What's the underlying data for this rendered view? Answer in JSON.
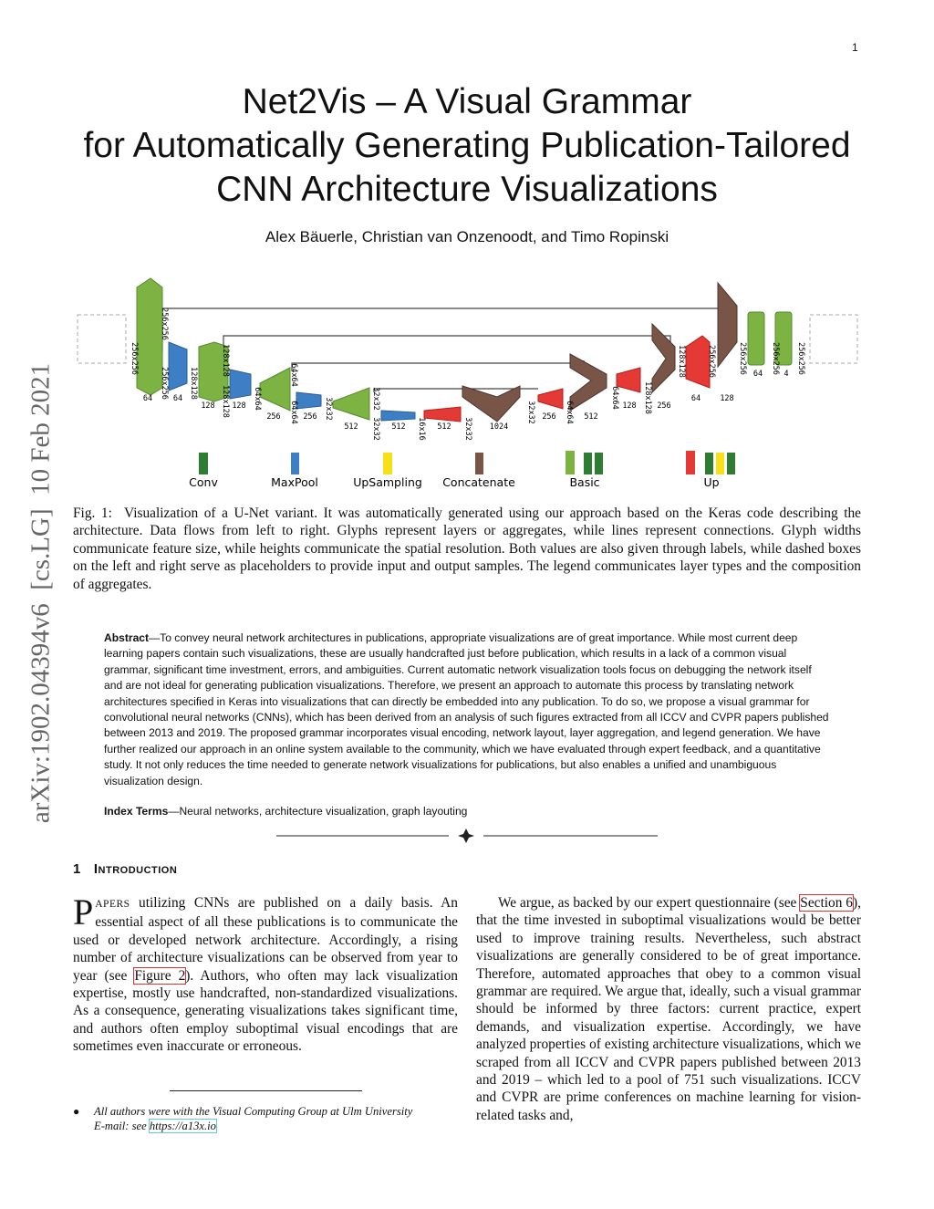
{
  "page_number": "1",
  "title": [
    "Net2Vis – A Visual Grammar",
    "for Automatically Generating Publication-Tailored",
    "CNN Architecture Visualizations"
  ],
  "authors": "Alex Bäuerle, Christian van Onzenoodt, and Timo Ropinski",
  "side_note": "arXiv:1902.04394v6  [cs.LG]  10 Feb 2021",
  "figure": {
    "dims": [
      "256x256",
      "256x256",
      "256x256",
      "128x128",
      "128x128",
      "128x128",
      "64x64",
      "64x64",
      "64x64",
      "32x32",
      "32x32",
      "32x32",
      "16x16",
      "32x32",
      "32x32",
      "64x64",
      "64x64",
      "128x128",
      "128x128",
      "256x256",
      "256x256",
      "256x256",
      "256x256"
    ],
    "channels": [
      "64",
      "64",
      "128",
      "128",
      "256",
      "256",
      "512",
      "512",
      "512",
      "1024",
      "256",
      "512",
      "128",
      "256",
      "64",
      "128",
      "64",
      "4"
    ],
    "legend": [
      "Conv",
      "MaxPool",
      "UpSampling",
      "Concatenate",
      "Basic",
      "Up"
    ]
  },
  "caption": {
    "label": "Fig. 1:",
    "text": "Visualization of a U-Net variant. It was automatically generated using our approach based on the Keras code describing the architecture. Data flows from left to right. Glyphs represent layers or aggregates, while lines represent connections. Glyph widths communicate feature size, while heights communicate the spatial resolution. Both values are also given through labels, while dashed boxes on the left and right serve as placeholders to provide input and output samples. The legend communicates layer types and the composition of aggregates."
  },
  "abstract": {
    "label": "Abstract",
    "text": "—To convey neural network architectures in publications, appropriate visualizations are of great importance. While most current deep learning papers contain such visualizations, these are usually handcrafted just before publication, which results in a lack of a common visual grammar, significant time investment, errors, and ambiguities. Current automatic network visualization tools focus on debugging the network itself and are not ideal for generating publication visualizations. Therefore, we present an approach to automate this process by translating network architectures specified in Keras into visualizations that can directly be embedded into any publication. To do so, we propose a visual grammar for convolutional neural networks (CNNs), which has been derived from an analysis of such figures extracted from all ICCV and CVPR papers published between 2013 and 2019. The proposed grammar incorporates visual encoding, network layout, layer aggregation, and legend generation. We have further realized our approach in an online system available to the community, which we have evaluated through expert feedback, and a quantitative study. It not only reduces the time needed to generate network visualizations for publications, but also enables a unified and unambiguous visualization design."
  },
  "index_terms": {
    "label": "Index Terms",
    "text": "—Neural networks, architecture visualization, graph layouting"
  },
  "section": {
    "number": "1",
    "title": "Introduction"
  },
  "left_paragraph": {
    "dropcap": "P",
    "smallcaps": "APERS",
    "text1": " utilizing CNNs are published on a daily basis. An essential aspect of all these publications is to communicate the used or developed network architecture. Accordingly, a rising number of architecture visualizations can be observed from year to year (see ",
    "link": "Figure 2",
    "text2": "). Authors, who often may lack visualization expertise, mostly use handcrafted, non-standardized visualizations. As a consequence, generating visualizations takes significant time, and authors often employ suboptimal visual encodings that are sometimes even inaccurate or erroneous."
  },
  "right_paragraph": {
    "text1": "We argue, as backed by our expert questionnaire (see ",
    "link": "Section 6",
    "text2": "), that the time invested in suboptimal visualizations would be better used to improve training results. Nevertheless, such abstract visualizations are generally considered to be of great importance. Therefore, automated approaches that obey to a common visual grammar are required. We argue that, ideally, such a visual grammar should be informed by three factors: current practice, expert demands, and visualization expertise. Accordingly, we have analyzed properties of existing architecture visualizations, which we scraped from all ICCV and CVPR papers published between 2013 and 2019 – which led to a pool of 751 such visualizations. ICCV and CVPR are prime conferences on machine learning for vision-related tasks and,"
  },
  "footnote": {
    "line1": "All authors were with the Visual Computing Group at Ulm University",
    "line2": "E-mail: see ",
    "link": "https://a13x.io"
  }
}
